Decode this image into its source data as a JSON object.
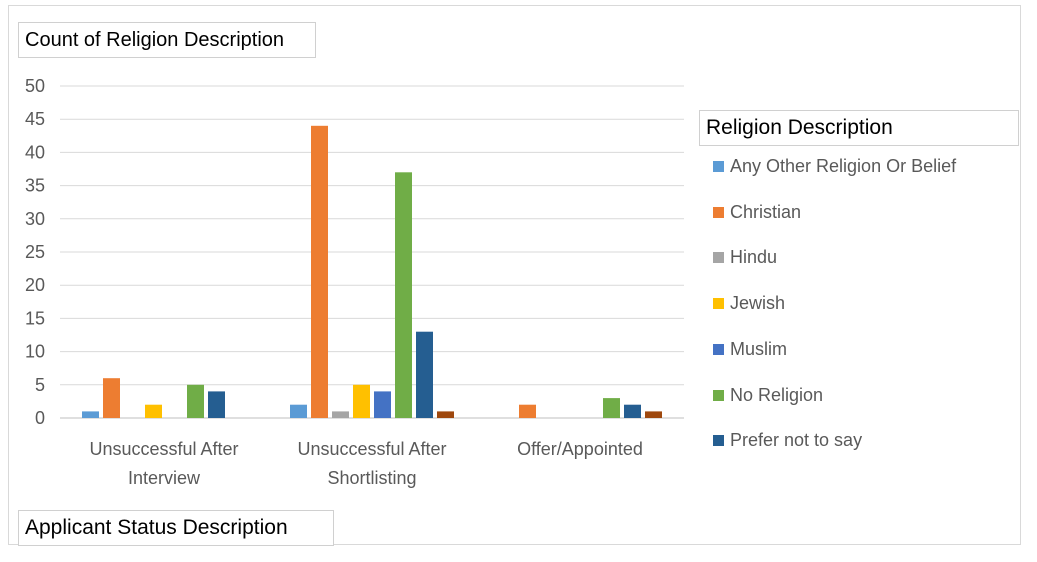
{
  "chart_data": {
    "type": "bar",
    "ylabel": "Count of Religion Description",
    "xlabel": "Applicant Status Description",
    "legend_title": "Religion Description",
    "ylim": [
      0,
      50
    ],
    "yticks": [
      0,
      5,
      10,
      15,
      20,
      25,
      30,
      35,
      40,
      45,
      50
    ],
    "grid": true,
    "legend_position": "right",
    "categories": [
      [
        "Unsuccessful After",
        "Interview"
      ],
      [
        "Unsuccessful After",
        "Shortlisting"
      ],
      [
        "Offer/Appointed"
      ]
    ],
    "series": [
      {
        "name": "Any Other Religion Or Belief",
        "color": "#5b9bd5",
        "values": [
          1,
          2,
          null
        ]
      },
      {
        "name": "Christian",
        "color": "#ed7d31",
        "values": [
          6,
          44,
          2
        ]
      },
      {
        "name": "Hindu",
        "color": "#a5a5a5",
        "values": [
          null,
          1,
          null
        ]
      },
      {
        "name": "Jewish",
        "color": "#ffc000",
        "values": [
          2,
          5,
          null
        ]
      },
      {
        "name": "Muslim",
        "color": "#4472c4",
        "values": [
          null,
          4,
          null
        ]
      },
      {
        "name": "No Religion",
        "color": "#70ad47",
        "values": [
          5,
          37,
          3
        ]
      },
      {
        "name": "Prefer not to say",
        "color": "#255e91",
        "values": [
          4,
          13,
          2
        ]
      },
      {
        "color": "#9e480e",
        "values": [
          null,
          1,
          1
        ]
      }
    ],
    "legend_visible_count": 7
  }
}
